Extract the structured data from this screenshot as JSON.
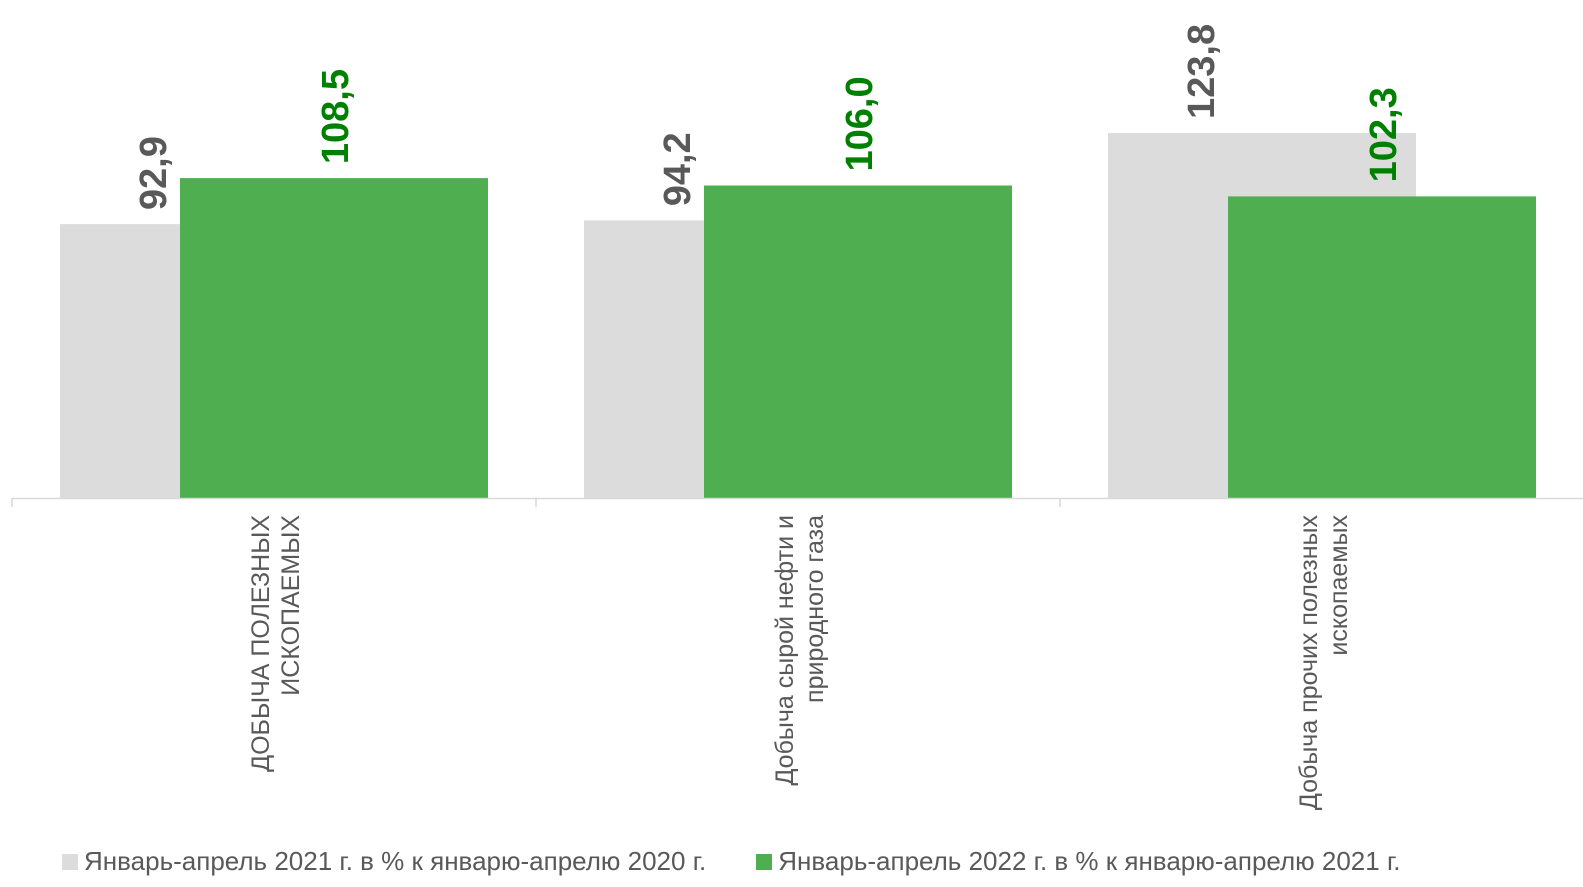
{
  "chart_data": {
    "type": "bar",
    "categories": [
      [
        "ДОБЫЧА ПОЛЕЗНЫХ",
        "ИСКОПАЕМЫХ"
      ],
      [
        "Добыча сырой нефти и",
        "природного газа"
      ],
      [
        "Добыча прочих полезных",
        "ископаемых"
      ]
    ],
    "series": [
      {
        "name": "Январь-апрель 2021 г. в % к январю-апрелю 2020 г.",
        "values": [
          92.9,
          94.2,
          123.8
        ],
        "labels": [
          "92,9",
          "94,2",
          "123,8"
        ],
        "color": "#dcdcdc",
        "label_color": "#595959"
      },
      {
        "name": "Январь-апрель 2022 г. в % к январю-апрелю 2021 г.",
        "values": [
          108.5,
          106.0,
          102.3
        ],
        "labels": [
          "108,5",
          "106,0",
          "102,3"
        ],
        "color": "#4fae50",
        "label_color": "#008000"
      }
    ],
    "ylim": [
      0,
      123.8
    ],
    "grid": false,
    "legend": "bottom"
  }
}
